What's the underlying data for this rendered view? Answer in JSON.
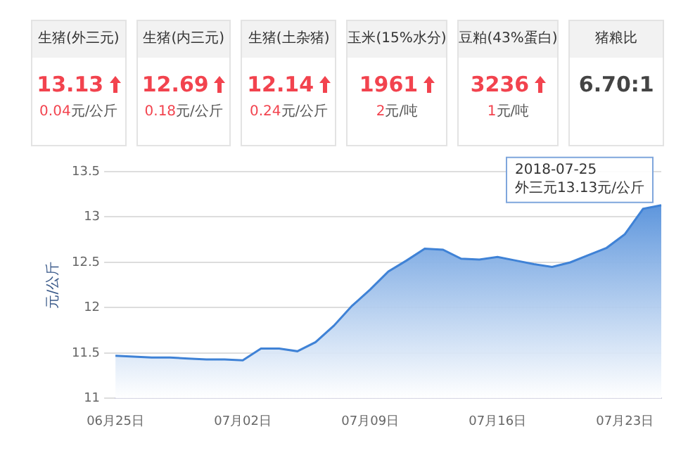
{
  "chart_data": [
    {
      "type": "other",
      "categories": [
        "生猪(外三元)",
        "生猪(内三元)",
        "生猪(土杂猪)",
        "玉米(15%水分)",
        "豆粕(43%蛋白)",
        "猪粮比"
      ],
      "value_labels": [
        "13.13",
        "12.69",
        "12.14",
        "1961",
        "3236",
        "6.70:1"
      ],
      "annotations": [
        "0.04元/公斤",
        "0.18元/公斤",
        "0.24元/公斤",
        "2元/吨",
        "1元/吨"
      ]
    },
    {
      "type": "area",
      "ylabel": "元/公斤",
      "color": "#3f82d6",
      "categories": [
        "06月25日",
        null,
        null,
        null,
        null,
        null,
        null,
        "07月02日",
        null,
        null,
        null,
        null,
        null,
        null,
        "07月09日",
        null,
        null,
        null,
        null,
        null,
        null,
        "07月16日",
        null,
        null,
        null,
        null,
        null,
        null,
        "07月23日",
        null,
        null
      ],
      "values": [
        11.47,
        11.46,
        11.45,
        11.45,
        11.44,
        11.43,
        11.43,
        11.42,
        11.55,
        11.55,
        11.52,
        11.62,
        11.8,
        12.02,
        12.2,
        12.4,
        12.52,
        12.65,
        12.64,
        12.54,
        12.53,
        12.56,
        12.52,
        12.48,
        12.45,
        12.5,
        12.58,
        12.66,
        12.81,
        13.09,
        13.13
      ],
      "ylim": [
        11,
        13.5
      ],
      "yticks": [
        11,
        11.5,
        12,
        12.5,
        13,
        13.5
      ],
      "grid": "y",
      "annotations": [
        "2018-07-25\n外三元13.13元/公斤"
      ]
    }
  ]
}
